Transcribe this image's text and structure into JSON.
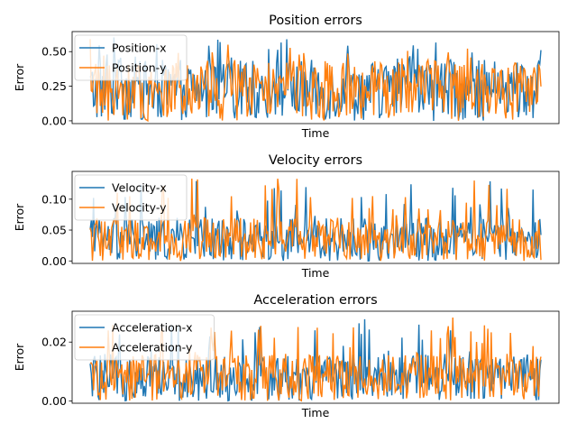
{
  "chart_data": [
    {
      "type": "line",
      "title": "Position errors",
      "xlabel": "Time",
      "ylabel": "Error",
      "ylim": [
        -0.02,
        0.645
      ],
      "yticks": [
        0.0,
        0.25,
        0.5
      ],
      "ytick_labels": [
        "0.00",
        "0.25",
        "0.50"
      ],
      "xticks_visible": false,
      "legend_placement": "upper-left",
      "grid": false,
      "n_points": 400,
      "series": [
        {
          "name": "Position-x",
          "color": "#1f77b4",
          "max": 0.61,
          "mean": 0.22
        },
        {
          "name": "Position-y",
          "color": "#ff7f0e",
          "max": 0.6,
          "mean": 0.22
        }
      ]
    },
    {
      "type": "line",
      "title": "Velocity errors",
      "xlabel": "Time",
      "ylabel": "Error",
      "ylim": [
        -0.004,
        0.145
      ],
      "yticks": [
        0.0,
        0.05,
        0.1
      ],
      "ytick_labels": [
        "0.00",
        "0.05",
        "0.10"
      ],
      "xticks_visible": false,
      "legend_placement": "upper-left",
      "grid": false,
      "n_points": 400,
      "series": [
        {
          "name": "Velocity-x",
          "color": "#1f77b4",
          "max": 0.13,
          "mean": 0.035
        },
        {
          "name": "Velocity-y",
          "color": "#ff7f0e",
          "max": 0.135,
          "mean": 0.035
        }
      ]
    },
    {
      "type": "line",
      "title": "Acceleration errors",
      "xlabel": "Time",
      "ylabel": "Error",
      "ylim": [
        -0.0008,
        0.0305
      ],
      "yticks": [
        0.0,
        0.02
      ],
      "ytick_labels": [
        "0.00",
        "0.02"
      ],
      "xticks_visible": false,
      "legend_placement": "upper-left",
      "grid": false,
      "n_points": 400,
      "series": [
        {
          "name": "Acceleration-x",
          "color": "#1f77b4",
          "max": 0.028,
          "mean": 0.008
        },
        {
          "name": "Acceleration-y",
          "color": "#ff7f0e",
          "max": 0.029,
          "mean": 0.008
        }
      ]
    }
  ]
}
